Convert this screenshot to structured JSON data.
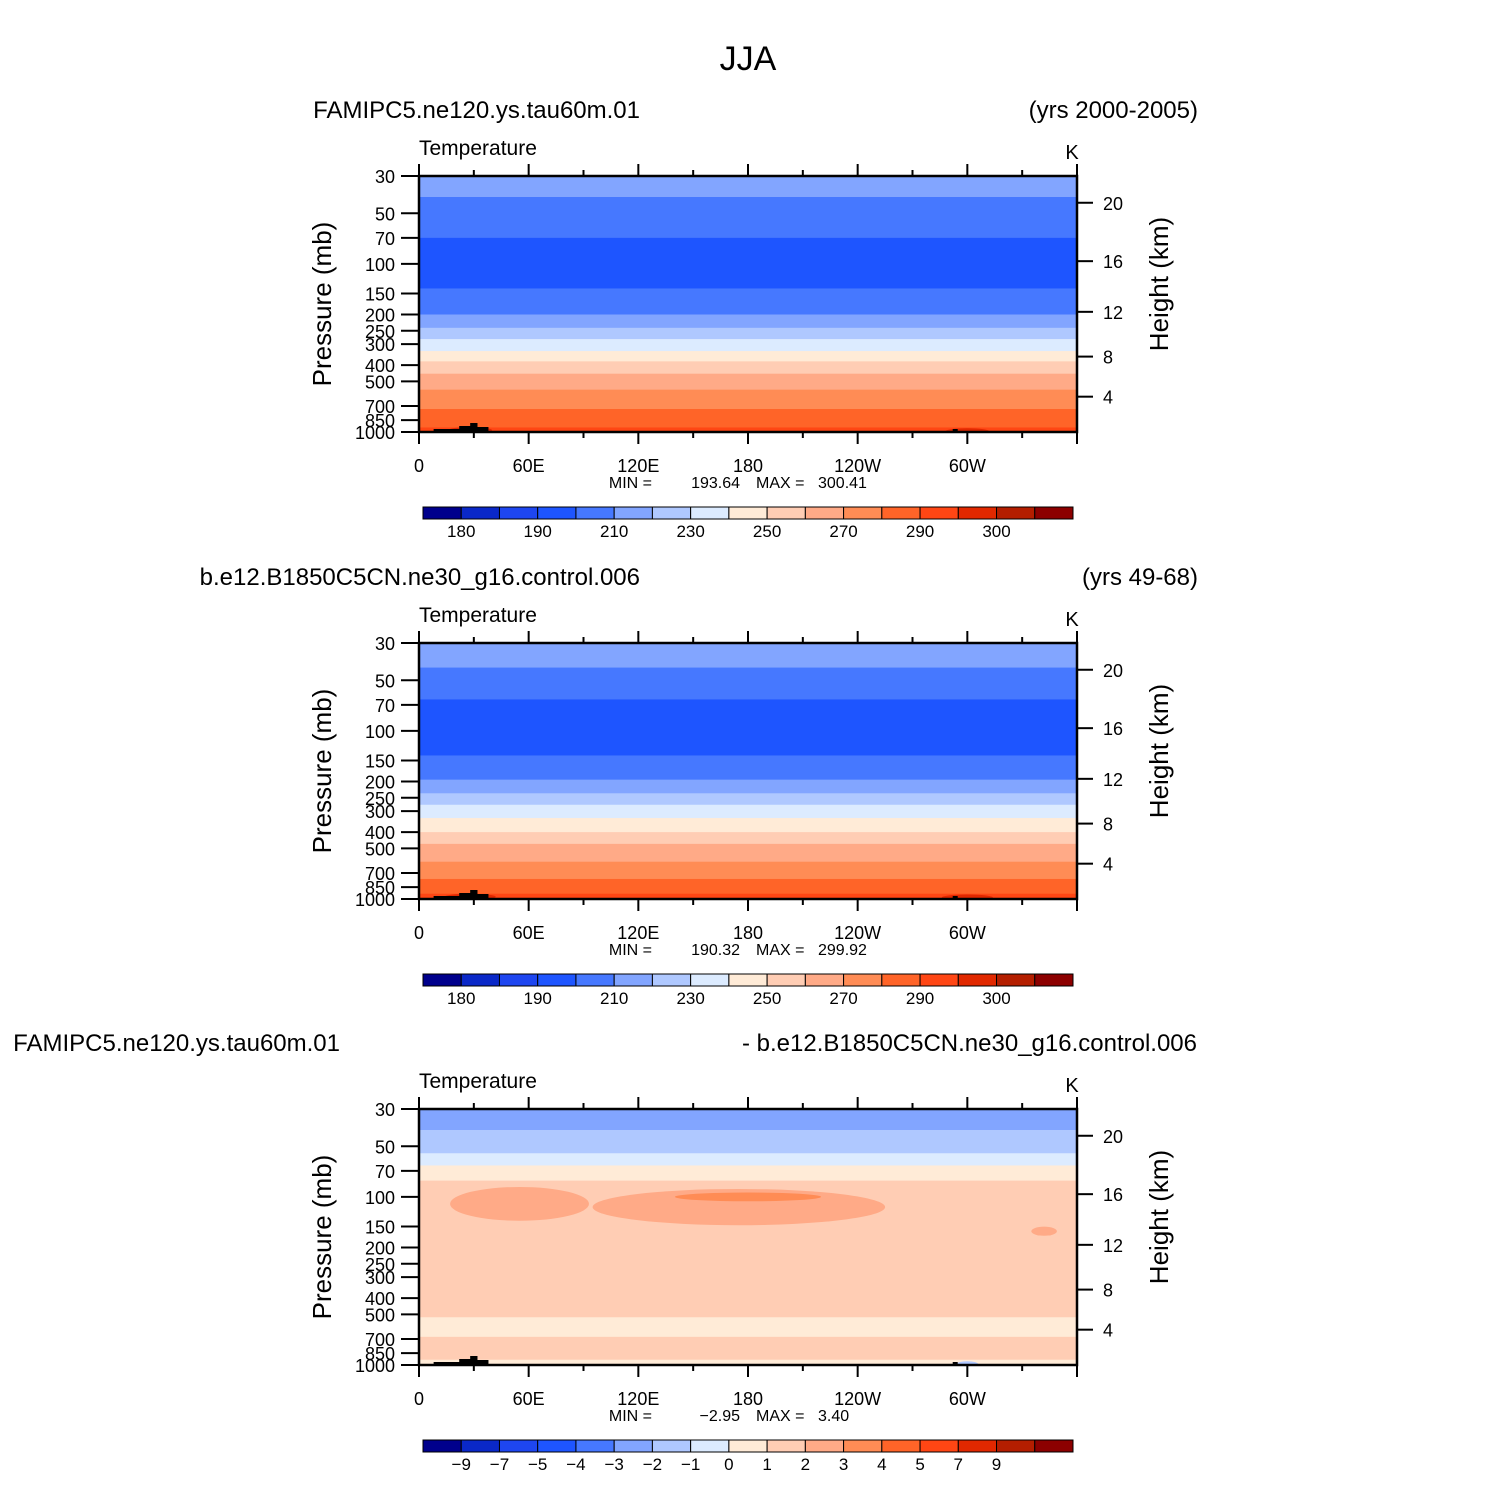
{
  "page_title": "JJA",
  "chart_data": [
    {
      "type": "heatmap",
      "title_left": "FAMIPC5.ne120.ys.tau60m.01",
      "title_right": "(yrs 2000-2005)",
      "field_label": "Temperature",
      "units": "K",
      "ylabel_left": "Pressure (mb)",
      "ylabel_right": "Height (km)",
      "x_ticks": [
        "0",
        "60E",
        "120E",
        "180",
        "120W",
        "60W"
      ],
      "x_tick_values": [
        0,
        60,
        120,
        180,
        240,
        300
      ],
      "xlim": [
        0,
        360
      ],
      "pressure_ticks": [
        "30",
        "50",
        "70",
        "100",
        "150",
        "200",
        "250",
        "300",
        "400",
        "500",
        "700",
        "850",
        "1000"
      ],
      "pressure_values": [
        30,
        50,
        70,
        100,
        150,
        200,
        250,
        300,
        400,
        500,
        700,
        850,
        1000
      ],
      "height_ticks": [
        "20",
        "16",
        "12",
        "8",
        "4"
      ],
      "height_values": [
        20,
        16,
        12,
        8,
        4
      ],
      "ylim_pressure": [
        1000,
        30
      ],
      "log_pressure_axis": true,
      "min_label": "MIN =",
      "min_value": "193.64",
      "max_label": "MAX =",
      "max_value": "300.41",
      "colorbar_labels": [
        "180",
        "190",
        "210",
        "230",
        "250",
        "270",
        "290",
        "300"
      ],
      "colorbar_colors": [
        "#00008c",
        "#0a28c8",
        "#1e46f0",
        "#1e55ff",
        "#4678ff",
        "#82a5ff",
        "#afc8ff",
        "#dcebff",
        "#ffebd7",
        "#ffcdb4",
        "#ffaa87",
        "#ff8c55",
        "#ff6428",
        "#ff4614",
        "#e12800",
        "#b41e00",
        "#8c0000"
      ],
      "bands": [
        {
          "p_top": 30,
          "p_bottom": 40,
          "color": "#82a5ff"
        },
        {
          "p_top": 40,
          "p_bottom": 70,
          "color": "#4678ff"
        },
        {
          "p_top": 70,
          "p_bottom": 140,
          "color": "#1e55ff"
        },
        {
          "p_top": 140,
          "p_bottom": 200,
          "color": "#4678ff"
        },
        {
          "p_top": 200,
          "p_bottom": 240,
          "color": "#82a5ff"
        },
        {
          "p_top": 240,
          "p_bottom": 280,
          "color": "#afc8ff"
        },
        {
          "p_top": 280,
          "p_bottom": 330,
          "color": "#dcebff"
        },
        {
          "p_top": 330,
          "p_bottom": 380,
          "color": "#ffebd7"
        },
        {
          "p_top": 380,
          "p_bottom": 450,
          "color": "#ffcdb4"
        },
        {
          "p_top": 450,
          "p_bottom": 560,
          "color": "#ffaa87"
        },
        {
          "p_top": 560,
          "p_bottom": 730,
          "color": "#ff8c55"
        },
        {
          "p_top": 730,
          "p_bottom": 940,
          "color": "#ff6428"
        },
        {
          "p_top": 940,
          "p_bottom": 1000,
          "color": "#ff4614"
        }
      ],
      "blobs": [
        {
          "lon": 28,
          "p": 975,
          "rlon": 12,
          "rp": 35,
          "color": "#e12800"
        },
        {
          "lon": 300,
          "p": 990,
          "rlon": 12,
          "rp": 20,
          "color": "#e12800"
        }
      ]
    },
    {
      "type": "heatmap",
      "title_left": "b.e12.B1850C5CN.ne30_g16.control.006",
      "title_right": "(yrs 49-68)",
      "field_label": "Temperature",
      "units": "K",
      "ylabel_left": "Pressure (mb)",
      "ylabel_right": "Height (km)",
      "x_ticks": [
        "0",
        "60E",
        "120E",
        "180",
        "120W",
        "60W"
      ],
      "x_tick_values": [
        0,
        60,
        120,
        180,
        240,
        300
      ],
      "xlim": [
        0,
        360
      ],
      "pressure_ticks": [
        "30",
        "50",
        "70",
        "100",
        "150",
        "200",
        "250",
        "300",
        "400",
        "500",
        "700",
        "850",
        "1000"
      ],
      "pressure_values": [
        30,
        50,
        70,
        100,
        150,
        200,
        250,
        300,
        400,
        500,
        700,
        850,
        1000
      ],
      "height_ticks": [
        "20",
        "16",
        "12",
        "8",
        "4"
      ],
      "height_values": [
        20,
        16,
        12,
        8,
        4
      ],
      "ylim_pressure": [
        1000,
        30
      ],
      "log_pressure_axis": true,
      "min_label": "MIN =",
      "min_value": "190.32",
      "max_label": "MAX =",
      "max_value": "299.92",
      "colorbar_labels": [
        "180",
        "190",
        "210",
        "230",
        "250",
        "270",
        "290",
        "300"
      ],
      "colorbar_colors": [
        "#00008c",
        "#0a28c8",
        "#1e46f0",
        "#1e55ff",
        "#4678ff",
        "#82a5ff",
        "#afc8ff",
        "#dcebff",
        "#ffebd7",
        "#ffcdb4",
        "#ffaa87",
        "#ff8c55",
        "#ff6428",
        "#ff4614",
        "#e12800",
        "#b41e00",
        "#8c0000"
      ],
      "bands": [
        {
          "p_top": 30,
          "p_bottom": 42,
          "color": "#82a5ff"
        },
        {
          "p_top": 42,
          "p_bottom": 65,
          "color": "#4678ff"
        },
        {
          "p_top": 65,
          "p_bottom": 140,
          "color": "#1e55ff"
        },
        {
          "p_top": 140,
          "p_bottom": 195,
          "color": "#4678ff"
        },
        {
          "p_top": 195,
          "p_bottom": 235,
          "color": "#82a5ff"
        },
        {
          "p_top": 235,
          "p_bottom": 275,
          "color": "#afc8ff"
        },
        {
          "p_top": 275,
          "p_bottom": 330,
          "color": "#dcebff"
        },
        {
          "p_top": 330,
          "p_bottom": 400,
          "color": "#ffebd7"
        },
        {
          "p_top": 400,
          "p_bottom": 470,
          "color": "#ffcdb4"
        },
        {
          "p_top": 470,
          "p_bottom": 600,
          "color": "#ffaa87"
        },
        {
          "p_top": 600,
          "p_bottom": 760,
          "color": "#ff8c55"
        },
        {
          "p_top": 760,
          "p_bottom": 930,
          "color": "#ff6428"
        },
        {
          "p_top": 930,
          "p_bottom": 1000,
          "color": "#ff4614"
        }
      ],
      "blobs": [
        {
          "lon": 28,
          "p": 970,
          "rlon": 14,
          "rp": 40,
          "color": "#e12800"
        },
        {
          "lon": 300,
          "p": 980,
          "rlon": 14,
          "rp": 30,
          "color": "#e12800"
        }
      ]
    },
    {
      "type": "heatmap",
      "title_left": "FAMIPC5.ne120.ys.tau60m.01",
      "title_right": "- b.e12.B1850C5CN.ne30_g16.control.006",
      "field_label": "Temperature",
      "units": "K",
      "ylabel_left": "Pressure (mb)",
      "ylabel_right": "Height (km)",
      "x_ticks": [
        "0",
        "60E",
        "120E",
        "180",
        "120W",
        "60W"
      ],
      "x_tick_values": [
        0,
        60,
        120,
        180,
        240,
        300
      ],
      "xlim": [
        0,
        360
      ],
      "pressure_ticks": [
        "30",
        "50",
        "70",
        "100",
        "150",
        "200",
        "250",
        "300",
        "400",
        "500",
        "700",
        "850",
        "1000"
      ],
      "pressure_values": [
        30,
        50,
        70,
        100,
        150,
        200,
        250,
        300,
        400,
        500,
        700,
        850,
        1000
      ],
      "height_ticks": [
        "20",
        "16",
        "12",
        "8",
        "4"
      ],
      "height_values": [
        20,
        16,
        12,
        8,
        4
      ],
      "ylim_pressure": [
        1000,
        30
      ],
      "log_pressure_axis": true,
      "min_label": "MIN =",
      "min_value": "−2.95",
      "max_label": "MAX =",
      "max_value": "3.40",
      "colorbar_labels": [
        "−9",
        "−7",
        "−5",
        "−4",
        "−3",
        "−2",
        "−1",
        "0",
        "1",
        "2",
        "3",
        "4",
        "5",
        "7",
        "9"
      ],
      "colorbar_colors": [
        "#00008c",
        "#0a28c8",
        "#1e46f0",
        "#1e55ff",
        "#4678ff",
        "#82a5ff",
        "#afc8ff",
        "#dcebff",
        "#ffebd7",
        "#ffcdb4",
        "#ffaa87",
        "#ff8c55",
        "#ff6428",
        "#ff4614",
        "#e12800",
        "#b41e00",
        "#8c0000"
      ],
      "bands": [
        {
          "p_top": 30,
          "p_bottom": 40,
          "color": "#82a5ff"
        },
        {
          "p_top": 40,
          "p_bottom": 55,
          "color": "#afc8ff"
        },
        {
          "p_top": 55,
          "p_bottom": 65,
          "color": "#dcebff"
        },
        {
          "p_top": 65,
          "p_bottom": 80,
          "color": "#ffebd7"
        },
        {
          "p_top": 80,
          "p_bottom": 520,
          "color": "#ffcdb4"
        },
        {
          "p_top": 520,
          "p_bottom": 680,
          "color": "#ffebd7"
        },
        {
          "p_top": 680,
          "p_bottom": 930,
          "color": "#ffcdb4"
        },
        {
          "p_top": 930,
          "p_bottom": 1000,
          "color": "#ffebd7"
        }
      ],
      "blobs": [
        {
          "lon": 55,
          "p": 110,
          "rlon": 38,
          "rp": 25,
          "color": "#ffaa87"
        },
        {
          "lon": 175,
          "p": 115,
          "rlon": 80,
          "rp": 28,
          "color": "#ffaa87"
        },
        {
          "lon": 180,
          "p": 100,
          "rlon": 40,
          "rp": 6,
          "color": "#ff8c55"
        },
        {
          "lon": 342,
          "p": 160,
          "rlon": 7,
          "rp": 10,
          "color": "#ffaa87"
        },
        {
          "lon": 300,
          "p": 990,
          "rlon": 6,
          "rp": 20,
          "color": "#afc8ff"
        }
      ]
    }
  ]
}
